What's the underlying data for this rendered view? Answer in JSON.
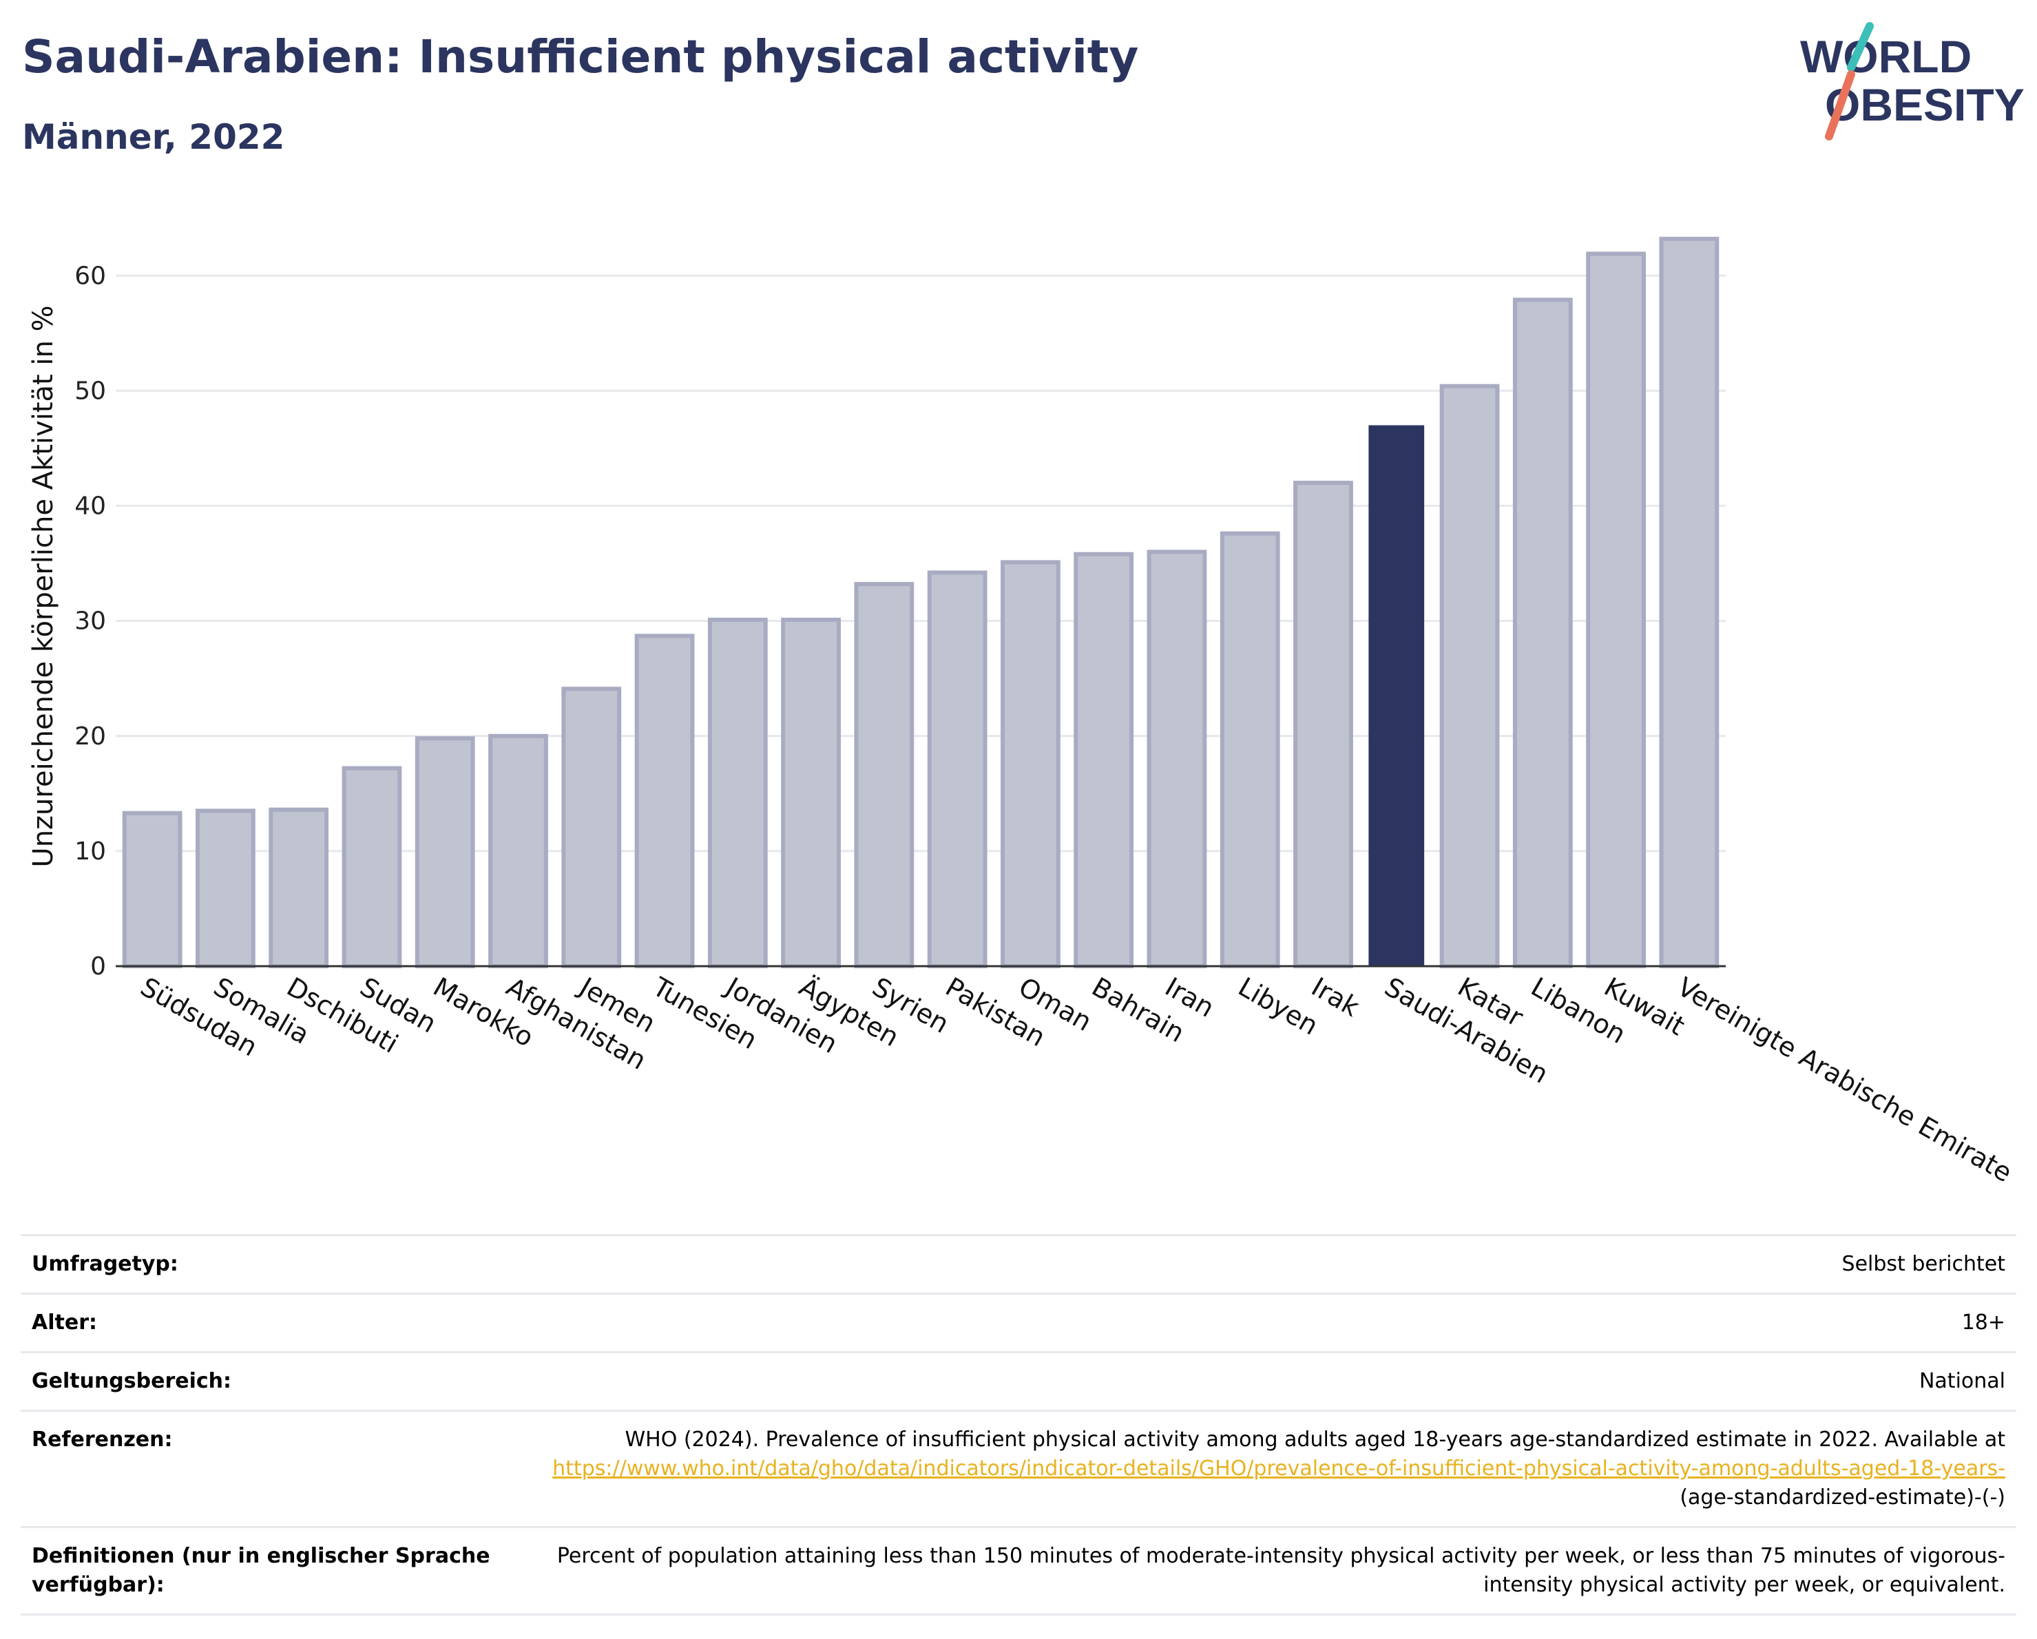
{
  "header": {
    "title": "Saudi-Arabien: Insufficient physical activity",
    "subtitle": "Männer, 2022"
  },
  "logo": {
    "line1": "WORLD",
    "line2": "OBESITY",
    "slash_colors": [
      "#3dbfb8",
      "#e8735a"
    ],
    "text_color": "#2b3560"
  },
  "chart_data": {
    "type": "bar",
    "categories": [
      "Südsudan",
      "Somalia",
      "Dschibuti",
      "Sudan",
      "Marokko",
      "Afghanistan",
      "Jemen",
      "Tunesien",
      "Jordanien",
      "Ägypten",
      "Syrien",
      "Pakistan",
      "Oman",
      "Bahrain",
      "Iran",
      "Libyen",
      "Irak",
      "Saudi-Arabien",
      "Katar",
      "Libanon",
      "Kuwait",
      "Vereinigte Arabische Emirate"
    ],
    "values": [
      13.3,
      13.5,
      13.6,
      17.2,
      19.8,
      20.0,
      24.1,
      28.7,
      30.1,
      30.1,
      33.2,
      34.2,
      35.1,
      35.8,
      36.0,
      37.6,
      42.0,
      47.0,
      50.4,
      57.9,
      61.9,
      63.2
    ],
    "highlight": "Saudi-Arabien",
    "ylabel": "Unzureichende körperliche Aktivität in %",
    "xlabel": "",
    "ylim": [
      0,
      66
    ],
    "yticks": [
      0,
      10,
      20,
      30,
      40,
      50,
      60
    ],
    "grid": true,
    "colors": {
      "highlight": "#2b3560",
      "other_fill": "#c0c3d0",
      "other_stroke": "#a8abc1"
    }
  },
  "info": {
    "rows": [
      {
        "label": "Umfragetyp:",
        "value": "Selbst berichtet"
      },
      {
        "label": "Alter:",
        "value": "18+"
      },
      {
        "label": "Geltungsbereich:",
        "value": "National"
      }
    ],
    "references": {
      "label": "Referenzen:",
      "text": "WHO (2024). Prevalence of insufficient physical activity among adults aged 18-years age-standardized estimate in 2022. Available at",
      "link": "https://www.who.int/data/gho/data/indicators/indicator-details/GHO/prevalence-of-insufficient-physical-activity-among-adults-aged-18-years-",
      "link_suffix": "(age-standardized-estimate)-(-)"
    },
    "definitions": {
      "label": "Definitionen (nur in englischer Sprache verfügbar):",
      "value": "Percent of population attaining less than 150 minutes of moderate-intensity physical activity per week, or less than 75 minutes of vigorous-intensity physical activity per week, or equivalent."
    }
  }
}
